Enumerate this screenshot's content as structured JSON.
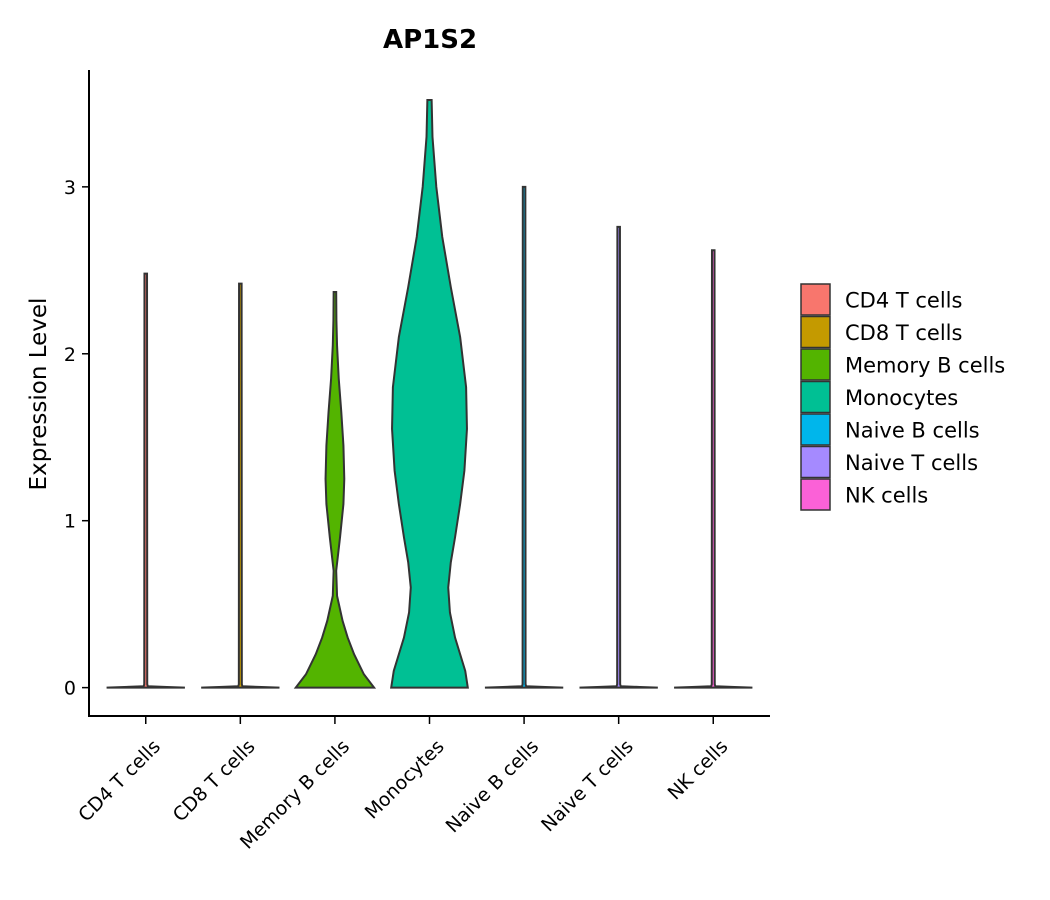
{
  "chart_data": {
    "type": "violin",
    "title": "AP1S2",
    "xlabel": "",
    "ylabel": "Expression Level",
    "ylim": [
      -0.17,
      3.7
    ],
    "yticks": [
      0,
      1,
      2,
      3
    ],
    "yticklabels": [
      "0",
      "1",
      "2",
      "3"
    ],
    "legend_position": "right",
    "categories": [
      "CD4 T cells",
      "CD8 T cells",
      "Memory B cells",
      "Monocytes",
      "Naive B cells",
      "Naive T cells",
      "NK cells"
    ],
    "series": [
      {
        "name": "CD4 T cells",
        "color": "#F8766D",
        "max": 2.48,
        "density": [
          [
            0,
            0.92
          ],
          [
            0.004,
            0.5
          ],
          [
            0.008,
            0.05
          ],
          [
            0.02,
            0.035
          ],
          [
            2.48,
            0.03
          ]
        ]
      },
      {
        "name": "CD8 T cells",
        "color": "#C49A00",
        "max": 2.42,
        "density": [
          [
            0,
            0.92
          ],
          [
            0.004,
            0.5
          ],
          [
            0.008,
            0.05
          ],
          [
            0.02,
            0.035
          ],
          [
            2.42,
            0.03
          ]
        ]
      },
      {
        "name": "Memory B cells",
        "color": "#53B400",
        "max": 2.37,
        "density": [
          [
            0,
            0.92
          ],
          [
            0.08,
            0.68
          ],
          [
            0.2,
            0.45
          ],
          [
            0.3,
            0.3
          ],
          [
            0.4,
            0.18
          ],
          [
            0.55,
            0.05
          ],
          [
            0.7,
            0.03
          ],
          [
            0.9,
            0.12
          ],
          [
            1.1,
            0.2
          ],
          [
            1.25,
            0.22
          ],
          [
            1.45,
            0.2
          ],
          [
            1.65,
            0.15
          ],
          [
            1.85,
            0.09
          ],
          [
            2.05,
            0.05
          ],
          [
            2.2,
            0.035
          ],
          [
            2.37,
            0.03
          ]
        ]
      },
      {
        "name": "Monocytes",
        "color": "#00C094",
        "max": 3.52,
        "density": [
          [
            0,
            0.9
          ],
          [
            0.1,
            0.84
          ],
          [
            0.2,
            0.72
          ],
          [
            0.3,
            0.6
          ],
          [
            0.45,
            0.48
          ],
          [
            0.6,
            0.44
          ],
          [
            0.75,
            0.5
          ],
          [
            0.9,
            0.6
          ],
          [
            1.1,
            0.72
          ],
          [
            1.3,
            0.82
          ],
          [
            1.55,
            0.88
          ],
          [
            1.8,
            0.86
          ],
          [
            2.1,
            0.72
          ],
          [
            2.4,
            0.5
          ],
          [
            2.7,
            0.3
          ],
          [
            3.0,
            0.16
          ],
          [
            3.3,
            0.07
          ],
          [
            3.52,
            0.05
          ]
        ]
      },
      {
        "name": "Naive B cells",
        "color": "#00B6EB",
        "max": 3.0,
        "density": [
          [
            0,
            0.92
          ],
          [
            0.004,
            0.5
          ],
          [
            0.008,
            0.05
          ],
          [
            0.02,
            0.035
          ],
          [
            3.0,
            0.03
          ]
        ]
      },
      {
        "name": "Naive T cells",
        "color": "#A58AFF",
        "max": 2.76,
        "density": [
          [
            0,
            0.92
          ],
          [
            0.004,
            0.5
          ],
          [
            0.008,
            0.05
          ],
          [
            0.02,
            0.035
          ],
          [
            2.76,
            0.03
          ]
        ]
      },
      {
        "name": "NK cells",
        "color": "#FB61D7",
        "max": 2.62,
        "density": [
          [
            0,
            0.92
          ],
          [
            0.004,
            0.5
          ],
          [
            0.008,
            0.05
          ],
          [
            0.02,
            0.035
          ],
          [
            2.62,
            0.03
          ]
        ]
      }
    ],
    "legend": [
      "CD4 T cells",
      "CD8 T cells",
      "Memory B cells",
      "Monocytes",
      "Naive B cells",
      "Naive T cells",
      "NK cells"
    ]
  }
}
